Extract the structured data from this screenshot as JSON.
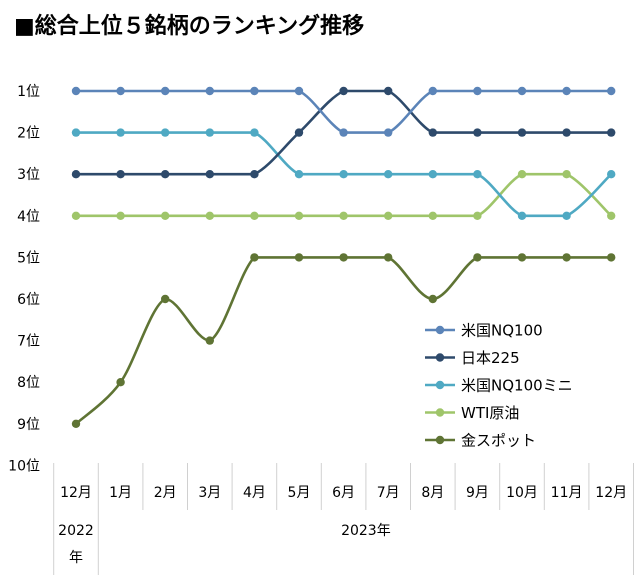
{
  "chart_data": {
    "type": "line",
    "title": "■総合上位５銘柄のランキング推移",
    "categories": [
      "12月",
      "1月",
      "2月",
      "3月",
      "4月",
      "5月",
      "6月",
      "7月",
      "8月",
      "9月",
      "10月",
      "11月",
      "12月"
    ],
    "year_groups": [
      {
        "label": "2022年",
        "span": 1
      },
      {
        "label": "2023年",
        "span": 12
      }
    ],
    "y_tick_labels": [
      "1位",
      "2位",
      "3位",
      "4位",
      "5位",
      "6位",
      "7位",
      "8位",
      "9位",
      "10位"
    ],
    "ylim": [
      1,
      10
    ],
    "y_inverted": true,
    "grid": false,
    "legend_position": "right",
    "series": [
      {
        "name": "米国NQ100",
        "color": "#5b84b8",
        "values": [
          1,
          1,
          1,
          1,
          1,
          1,
          2,
          2,
          1,
          1,
          1,
          1,
          1
        ]
      },
      {
        "name": "日本225",
        "color": "#2e4a6b",
        "values": [
          3,
          3,
          3,
          3,
          3,
          2,
          1,
          1,
          2,
          2,
          2,
          2,
          2
        ]
      },
      {
        "name": "米国NQ100ミニ",
        "color": "#4fa9c3",
        "values": [
          2,
          2,
          2,
          2,
          2,
          3,
          3,
          3,
          3,
          3,
          4,
          4,
          3
        ]
      },
      {
        "name": "WTI原油",
        "color": "#9fc56a",
        "values": [
          4,
          4,
          4,
          4,
          4,
          4,
          4,
          4,
          4,
          4,
          3,
          3,
          4
        ]
      },
      {
        "name": "金スポット",
        "color": "#5f7434",
        "values": [
          9,
          8,
          6,
          7,
          5,
          5,
          5,
          5,
          6,
          5,
          5,
          5,
          5
        ]
      }
    ]
  }
}
